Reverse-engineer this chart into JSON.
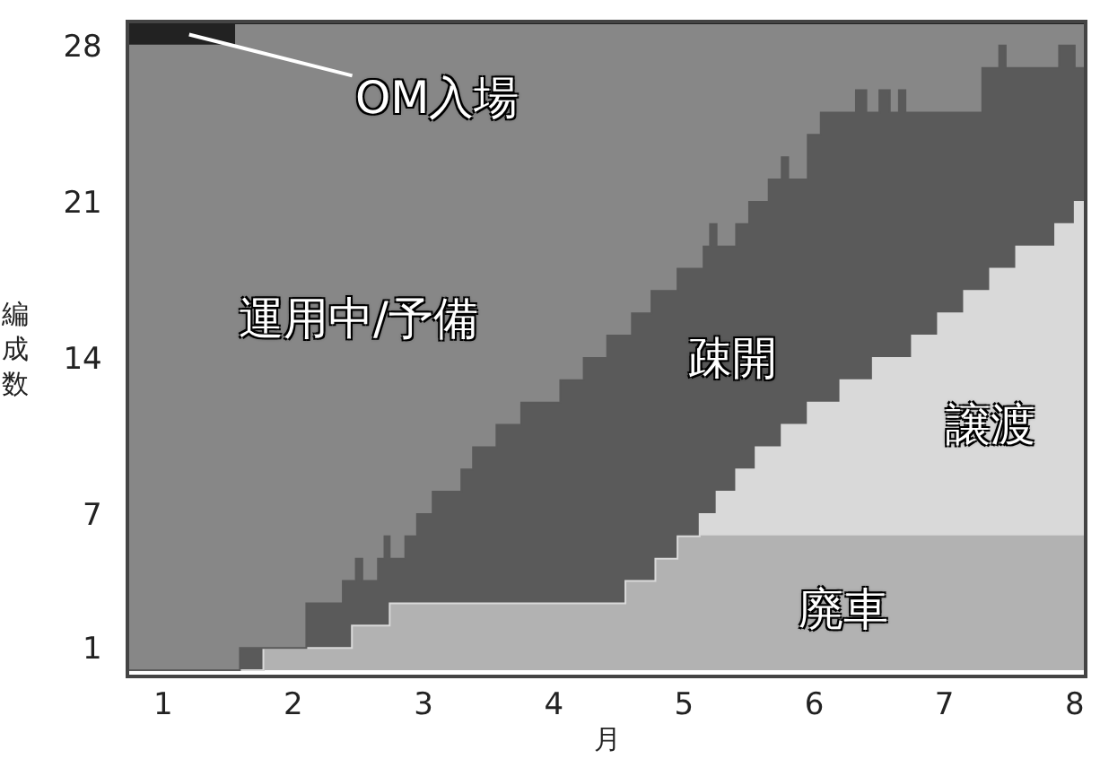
{
  "chart_data": {
    "type": "area",
    "stacked": true,
    "xlabel": "月",
    "ylabel": "編成数",
    "x": [
      0.74,
      1.56,
      1.59,
      1.77,
      2.1,
      2.38,
      2.45,
      2.48,
      2.53,
      2.65,
      2.7,
      2.74,
      2.86,
      2.95,
      3.07,
      3.29,
      3.38,
      3.56,
      3.75,
      4.05,
      4.23,
      4.41,
      4.55,
      4.6,
      4.75,
      4.78,
      4.95,
      5.12,
      5.15,
      5.2,
      5.25,
      5.4,
      5.5,
      5.55,
      5.65,
      5.75,
      5.8,
      5.95,
      6.05,
      6.2,
      6.32,
      6.4,
      6.45,
      6.5,
      6.58,
      6.65,
      6.7,
      6.75,
      6.95,
      7.15,
      7.29,
      7.35,
      7.42,
      7.47,
      7.55,
      7.85,
      7.88,
      8.0,
      8.07
    ],
    "series": [
      {
        "name": "廃車",
        "color": "#b2b2b2",
        "values": [
          0,
          0,
          0,
          1,
          1,
          1,
          2,
          2,
          2,
          2,
          2,
          3,
          3,
          3,
          3,
          3,
          3,
          3,
          3,
          3,
          3,
          3,
          4,
          4,
          4,
          5,
          6,
          6,
          6,
          6,
          6,
          6,
          6,
          6,
          6,
          6,
          6,
          6,
          6,
          6,
          6,
          6,
          6,
          6,
          6,
          6,
          6,
          6,
          6,
          6,
          6,
          6,
          6,
          6,
          6,
          6,
          6,
          6,
          6
        ]
      },
      {
        "name": "譲渡",
        "color": "#d9d9d9",
        "values": [
          0,
          0,
          0,
          0,
          0,
          0,
          0,
          0,
          0,
          0,
          0,
          0,
          0,
          0,
          0,
          0,
          0,
          0,
          0,
          0,
          0,
          0,
          0,
          0,
          0,
          0,
          0,
          1,
          1,
          1,
          2,
          3,
          3,
          4,
          4,
          5,
          5,
          6,
          6,
          7,
          7,
          7,
          8,
          8,
          8,
          8,
          8,
          9,
          10,
          11,
          11,
          12,
          12,
          12,
          13,
          14,
          14,
          15,
          15
        ]
      },
      {
        "name": "疎開",
        "color": "#5a5a5a",
        "values": [
          0,
          0,
          1,
          0,
          2,
          3,
          2,
          3,
          2,
          3,
          4,
          2,
          3,
          4,
          5,
          6,
          7,
          8,
          9,
          10,
          11,
          12,
          11,
          12,
          13,
          12,
          12,
          11,
          12,
          13,
          11,
          11,
          12,
          11,
          12,
          12,
          11,
          12,
          13,
          12,
          13,
          12,
          11,
          12,
          11,
          12,
          11,
          10,
          9,
          8,
          10,
          9,
          10,
          9,
          8,
          7,
          8,
          6,
          6
        ]
      },
      {
        "name": "運用中/予備",
        "color": "#878787",
        "values": [
          28,
          29,
          28,
          28,
          26,
          25,
          25,
          24,
          25,
          24,
          23,
          24,
          23,
          22,
          21,
          20,
          19,
          18,
          17,
          16,
          15,
          14,
          14,
          13,
          12,
          12,
          11,
          11,
          10,
          9,
          10,
          9,
          8,
          8,
          7,
          6,
          7,
          5,
          4,
          4,
          3,
          4,
          4,
          3,
          4,
          3,
          4,
          4,
          4,
          4,
          2,
          2,
          1,
          2,
          2,
          2,
          1,
          2,
          2
        ]
      },
      {
        "name": "OM入場",
        "color": "#222222",
        "values": [
          1,
          0,
          0,
          0,
          0,
          0,
          0,
          0,
          0,
          0,
          0,
          0,
          0,
          0,
          0,
          0,
          0,
          0,
          0,
          0,
          0,
          0,
          0,
          0,
          0,
          0,
          0,
          0,
          0,
          0,
          0,
          0,
          0,
          0,
          0,
          0,
          0,
          0,
          0,
          0,
          0,
          0,
          0,
          0,
          0,
          0,
          0,
          0,
          0,
          0,
          0,
          0,
          0,
          0,
          0,
          0,
          0,
          0,
          0
        ]
      }
    ],
    "xlim": [
      0.74,
      8.07
    ],
    "xticks": [
      1,
      2,
      3,
      4,
      5,
      6,
      7,
      8
    ],
    "ylim": [
      -0.2,
      29
    ],
    "yticks": [
      1,
      7,
      14,
      21,
      28
    ],
    "legend": false
  }
}
